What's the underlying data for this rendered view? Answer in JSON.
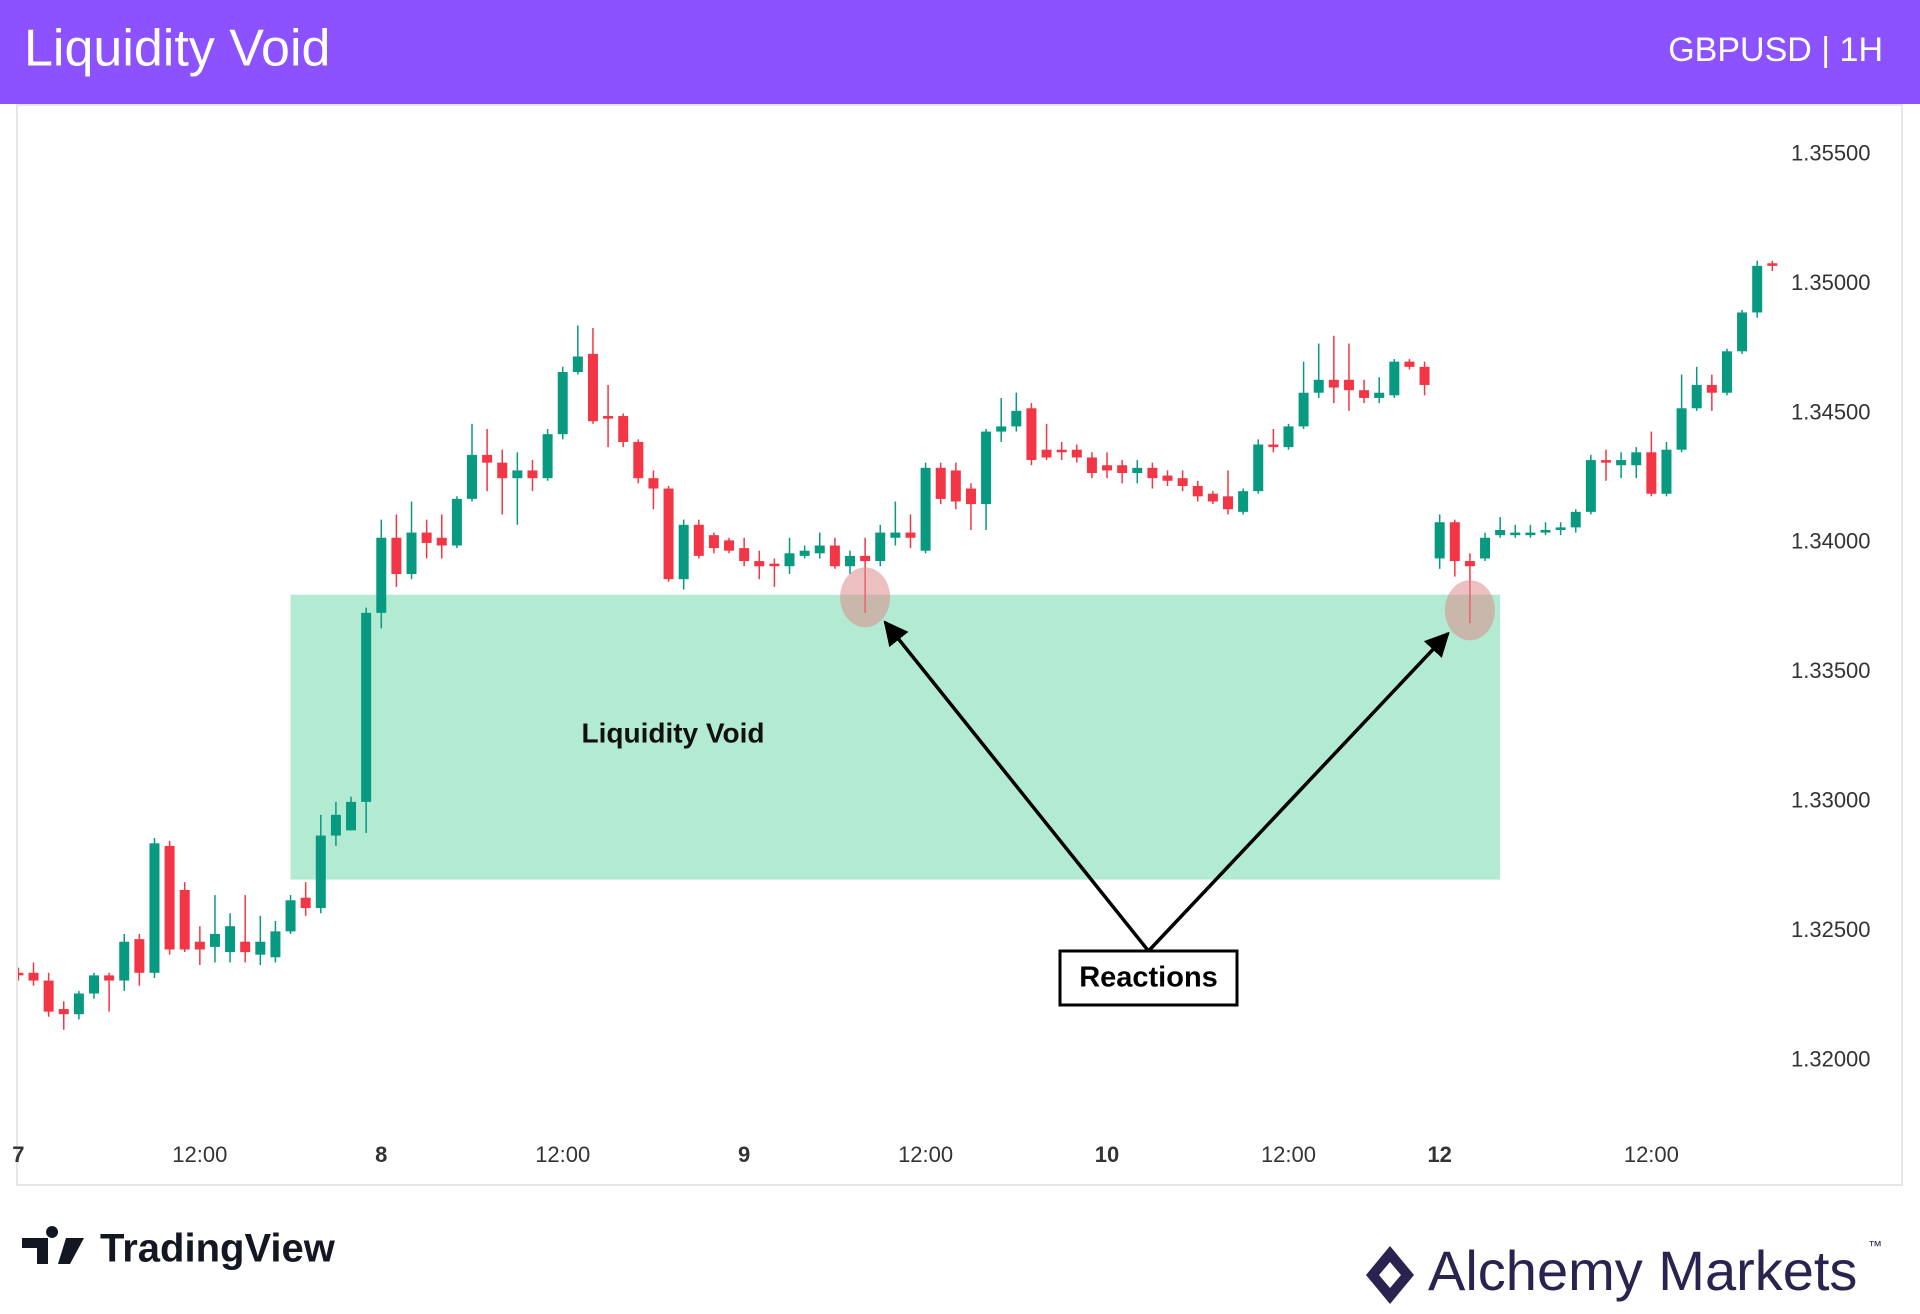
{
  "chart_data": {
    "type": "candlestick",
    "title": "Liquidity Void",
    "subtitle": "GBPUSD | 1H",
    "up_color": "#089981",
    "down_color": "#f23645",
    "ylim": [
      1.3177,
      1.3569
    ],
    "yticks": [
      {
        "value": 1.355,
        "label": "1.35500"
      },
      {
        "value": 1.35,
        "label": "1.35000"
      },
      {
        "value": 1.345,
        "label": "1.34500"
      },
      {
        "value": 1.34,
        "label": "1.34000"
      },
      {
        "value": 1.335,
        "label": "1.33500"
      },
      {
        "value": 1.33,
        "label": "1.33000"
      },
      {
        "value": 1.325,
        "label": "1.32500"
      },
      {
        "value": 1.32,
        "label": "1.32000"
      }
    ],
    "categories": [
      "7",
      null,
      null,
      null,
      null,
      null,
      null,
      null,
      null,
      null,
      null,
      null,
      "12:00",
      null,
      null,
      null,
      null,
      null,
      null,
      null,
      null,
      null,
      null,
      null,
      "8",
      null,
      null,
      null,
      null,
      null,
      null,
      null,
      null,
      null,
      null,
      null,
      "12:00",
      null,
      null,
      null,
      null,
      null,
      null,
      null,
      null,
      null,
      null,
      null,
      "9",
      null,
      null,
      null,
      null,
      null,
      null,
      null,
      null,
      null,
      null,
      null,
      "12:00",
      null,
      null,
      null,
      null,
      null,
      null,
      null,
      null,
      null,
      null,
      null,
      "10",
      null,
      null,
      null,
      null,
      null,
      null,
      null,
      null,
      null,
      null,
      null,
      "12:00",
      null,
      null,
      null,
      null,
      null,
      null,
      null,
      null,
      null,
      "12",
      null,
      null,
      null,
      null,
      null,
      null,
      null,
      null,
      null,
      null,
      null,
      null,
      null,
      "12:00",
      null,
      null,
      null,
      null,
      null,
      null,
      null,
      null
    ],
    "open": [
      1.3234,
      1.3234,
      1.3231,
      1.322,
      1.3218,
      1.3226,
      1.3233,
      1.3231,
      1.3247,
      1.3234,
      1.3283,
      1.3266,
      1.3246,
      1.3244,
      1.3242,
      1.3246,
      1.3241,
      1.324,
      1.325,
      1.3263,
      1.3259,
      1.3287,
      1.3289,
      1.33,
      1.3373,
      1.3402,
      1.3388,
      1.3404,
      1.3402,
      1.3399,
      1.3417,
      1.3434,
      1.3431,
      1.3425,
      1.3428,
      1.3425,
      1.3442,
      1.3466,
      1.3473,
      1.3449,
      1.3449,
      1.3439,
      1.3425,
      1.3421,
      1.3386,
      1.3407,
      1.3403,
      1.3401,
      1.3398,
      1.3393,
      1.3392,
      1.3391,
      1.3395,
      1.3396,
      1.3399,
      1.3391,
      1.3395,
      1.3393,
      1.3402,
      1.3404,
      1.3397,
      1.3429,
      1.3428,
      1.3421,
      1.3415,
      1.3443,
      1.3445,
      1.3452,
      1.3436,
      1.3436,
      1.3436,
      1.3433,
      1.343,
      1.343,
      1.3427,
      1.3429,
      1.3426,
      1.3425,
      1.3422,
      1.3419,
      1.3418,
      1.3412,
      1.342,
      1.3438,
      1.3437,
      1.3445,
      1.3458,
      1.3463,
      1.3463,
      1.3459,
      1.3456,
      1.3457,
      1.347,
      1.3468,
      1.3394,
      1.3408,
      1.3393,
      1.3394,
      1.3403,
      1.3403,
      1.3403,
      1.3404,
      1.3405,
      1.3406,
      1.3412,
      1.3432,
      1.343,
      1.343,
      1.3435,
      1.3419,
      1.3436,
      1.3452,
      1.3461,
      1.3458,
      1.3474,
      1.3489,
      1.3508
    ],
    "high": [
      1.3236,
      1.3238,
      1.3234,
      1.3223,
      1.3227,
      1.3234,
      1.3234,
      1.3249,
      1.3249,
      1.3286,
      1.3285,
      1.3269,
      1.3252,
      1.3264,
      1.3257,
      1.3264,
      1.3256,
      1.3254,
      1.3264,
      1.3269,
      1.3295,
      1.33,
      1.3302,
      1.3375,
      1.3409,
      1.3411,
      1.3416,
      1.3409,
      1.3411,
      1.3418,
      1.3446,
      1.3444,
      1.3436,
      1.3435,
      1.3432,
      1.3444,
      1.3468,
      1.3484,
      1.3483,
      1.3461,
      1.345,
      1.344,
      1.3428,
      1.3422,
      1.3409,
      1.3409,
      1.3404,
      1.3402,
      1.3402,
      1.3397,
      1.3394,
      1.3402,
      1.3399,
      1.3404,
      1.3402,
      1.3397,
      1.3402,
      1.3407,
      1.3416,
      1.3411,
      1.3431,
      1.3431,
      1.3431,
      1.3423,
      1.3444,
      1.3456,
      1.3458,
      1.3454,
      1.3446,
      1.3439,
      1.3438,
      1.3435,
      1.3435,
      1.3432,
      1.3432,
      1.3431,
      1.3428,
      1.3428,
      1.3424,
      1.342,
      1.3428,
      1.3421,
      1.344,
      1.3444,
      1.3446,
      1.347,
      1.3477,
      1.348,
      1.3477,
      1.3463,
      1.3464,
      1.3471,
      1.3471,
      1.347,
      1.3411,
      1.3409,
      1.3396,
      1.3404,
      1.341,
      1.3407,
      1.3407,
      1.3408,
      1.3408,
      1.3413,
      1.3434,
      1.3436,
      1.3435,
      1.3437,
      1.3443,
      1.3439,
      1.3465,
      1.3468,
      1.3465,
      1.3475,
      1.349,
      1.3509,
      1.3509
    ],
    "low": [
      1.3231,
      1.3229,
      1.3217,
      1.3212,
      1.3216,
      1.3224,
      1.3219,
      1.3227,
      1.3229,
      1.3232,
      1.3241,
      1.3242,
      1.3237,
      1.3238,
      1.3238,
      1.3238,
      1.3237,
      1.3238,
      1.3249,
      1.3256,
      1.3257,
      1.3283,
      1.3289,
      1.3288,
      1.3367,
      1.3383,
      1.3386,
      1.3394,
      1.3394,
      1.3398,
      1.3416,
      1.342,
      1.3411,
      1.3407,
      1.342,
      1.3424,
      1.344,
      1.3465,
      1.3446,
      1.3437,
      1.3437,
      1.3423,
      1.3413,
      1.3385,
      1.3382,
      1.3394,
      1.3396,
      1.3396,
      1.3391,
      1.3386,
      1.3383,
      1.3388,
      1.3394,
      1.3394,
      1.339,
      1.3388,
      1.3373,
      1.3391,
      1.3399,
      1.3398,
      1.3396,
      1.3415,
      1.3413,
      1.3405,
      1.3405,
      1.3439,
      1.3443,
      1.343,
      1.3432,
      1.3432,
      1.3431,
      1.3425,
      1.3425,
      1.3423,
      1.3423,
      1.3421,
      1.3422,
      1.342,
      1.3416,
      1.3415,
      1.3411,
      1.3411,
      1.3419,
      1.3435,
      1.3436,
      1.3444,
      1.3456,
      1.3454,
      1.3451,
      1.3454,
      1.3454,
      1.3456,
      1.3467,
      1.3457,
      1.339,
      1.3387,
      1.3369,
      1.3393,
      1.3402,
      1.3402,
      1.3402,
      1.3403,
      1.3403,
      1.3404,
      1.3411,
      1.3424,
      1.3425,
      1.3425,
      1.3418,
      1.3418,
      1.3435,
      1.3451,
      1.3451,
      1.3457,
      1.3473,
      1.3487,
      1.3505
    ],
    "close": [
      1.3233,
      1.3231,
      1.3219,
      1.3218,
      1.3226,
      1.3233,
      1.3231,
      1.3246,
      1.3234,
      1.3284,
      1.3243,
      1.3243,
      1.3243,
      1.3249,
      1.3252,
      1.3242,
      1.3246,
      1.325,
      1.3262,
      1.3259,
      1.3287,
      1.3295,
      1.33,
      1.3373,
      1.3402,
      1.3388,
      1.3404,
      1.34,
      1.3399,
      1.3417,
      1.3434,
      1.3431,
      1.3425,
      1.3428,
      1.3425,
      1.3442,
      1.3466,
      1.3472,
      1.3447,
      1.3448,
      1.3439,
      1.3425,
      1.3421,
      1.3386,
      1.3407,
      1.3395,
      1.3398,
      1.3397,
      1.3393,
      1.3391,
      1.3391,
      1.3396,
      1.3397,
      1.3399,
      1.3391,
      1.3395,
      1.3393,
      1.3404,
      1.3404,
      1.3402,
      1.3429,
      1.3417,
      1.3416,
      1.3415,
      1.3443,
      1.3445,
      1.3451,
      1.3432,
      1.3433,
      1.3435,
      1.3433,
      1.3427,
      1.3428,
      1.3427,
      1.3429,
      1.3425,
      1.3424,
      1.3422,
      1.3418,
      1.3416,
      1.3413,
      1.342,
      1.3438,
      1.3437,
      1.3445,
      1.3458,
      1.3463,
      1.346,
      1.3459,
      1.3456,
      1.3458,
      1.347,
      1.3468,
      1.3461,
      1.3408,
      1.3393,
      1.3391,
      1.3402,
      1.3405,
      1.3404,
      1.3404,
      1.3405,
      1.3406,
      1.3412,
      1.3432,
      1.3431,
      1.3432,
      1.3435,
      1.3419,
      1.3436,
      1.3452,
      1.3461,
      1.3458,
      1.3474,
      1.3489,
      1.3507,
      1.3507
    ],
    "zone": {
      "label": "Liquidity Void",
      "x_start": 18,
      "x_end": 98,
      "top": 1.338,
      "bottom": 1.327
    },
    "reactions": {
      "label": "Reactions",
      "points": [
        {
          "x": 56,
          "price": 1.3379
        },
        {
          "x": 96,
          "price": 1.3374
        }
      ]
    }
  },
  "footer": {
    "left": "TradingView",
    "right": "Alchemy Markets",
    "trademark": "™"
  }
}
